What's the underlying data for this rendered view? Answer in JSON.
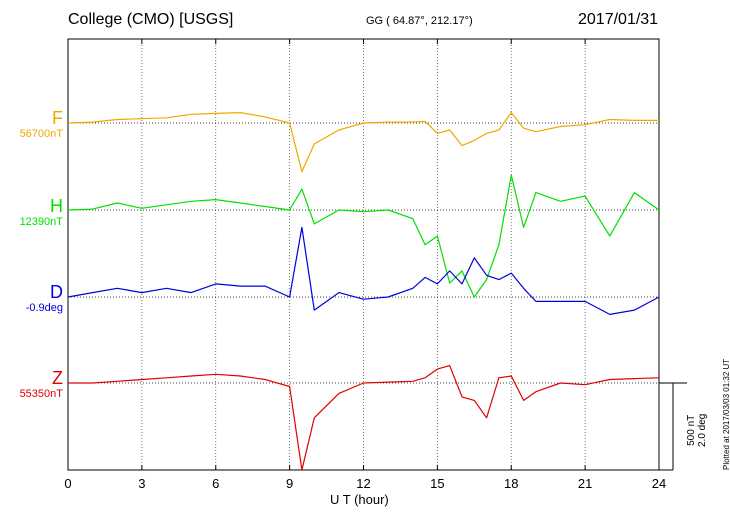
{
  "header": {
    "title": "College (CMO)  [USGS]",
    "coords": "GG ( 64.87°, 212.17°)",
    "date": "2017/01/31"
  },
  "colors": {
    "F": "#f0a800",
    "H": "#00e000",
    "D": "#0000e0",
    "Z": "#e00000"
  },
  "channels": [
    {
      "name": "F",
      "baseline": "56700nT"
    },
    {
      "name": "H",
      "baseline": "12390nT"
    },
    {
      "name": "D",
      "baseline": "-0.9deg"
    },
    {
      "name": "Z",
      "baseline": "55350nT"
    }
  ],
  "scale_label": {
    "nt": "500 nT",
    "deg": "2.0 deg"
  },
  "plotted": "Plotted at 2017/03/03 01:32 UT",
  "chart_data": {
    "type": "line",
    "xlabel": "U T (hour)",
    "xlim": [
      0,
      24
    ],
    "x_ticks": [
      "0",
      "3",
      "6",
      "9",
      "12",
      "15",
      "18",
      "21",
      "24"
    ],
    "grid": true,
    "x": [
      0,
      1,
      2,
      3,
      4,
      5,
      6,
      7,
      8,
      9,
      9.5,
      10,
      11,
      12,
      13,
      14,
      14.5,
      15,
      15.5,
      16,
      16.5,
      17,
      17.5,
      18,
      18.5,
      19,
      20,
      21,
      22,
      23,
      24
    ],
    "series": [
      {
        "name": "F",
        "unit": "nT",
        "values": [
          0,
          5,
          20,
          25,
          30,
          50,
          55,
          60,
          35,
          0,
          -280,
          -120,
          -40,
          0,
          5,
          5,
          10,
          -60,
          -40,
          -130,
          -100,
          -60,
          -40,
          60,
          -30,
          -50,
          -20,
          -10,
          20,
          15,
          15
        ]
      },
      {
        "name": "H",
        "unit": "nT",
        "values": [
          0,
          5,
          40,
          10,
          30,
          50,
          60,
          40,
          20,
          0,
          120,
          -80,
          0,
          -10,
          0,
          -50,
          -200,
          -150,
          -420,
          -350,
          -500,
          -400,
          -200,
          200,
          -100,
          100,
          50,
          80,
          -150,
          100,
          0
        ]
      },
      {
        "name": "D",
        "unit": "deg",
        "values": [
          0,
          0.1,
          0.2,
          0.1,
          0.2,
          0.1,
          0.3,
          0.25,
          0.25,
          0,
          1.6,
          -0.3,
          0.1,
          -0.05,
          0,
          0.2,
          0.45,
          0.3,
          0.6,
          0.3,
          0.9,
          0.5,
          0.4,
          0.55,
          0.2,
          -0.1,
          -0.1,
          -0.1,
          -0.4,
          -0.3,
          0
        ]
      },
      {
        "name": "Z",
        "unit": "nT",
        "values": [
          0,
          0,
          10,
          20,
          30,
          40,
          50,
          40,
          20,
          -20,
          -500,
          -200,
          -60,
          0,
          5,
          10,
          30,
          80,
          100,
          -80,
          -100,
          -200,
          30,
          40,
          -100,
          -50,
          0,
          -10,
          20,
          25,
          30
        ]
      }
    ]
  }
}
